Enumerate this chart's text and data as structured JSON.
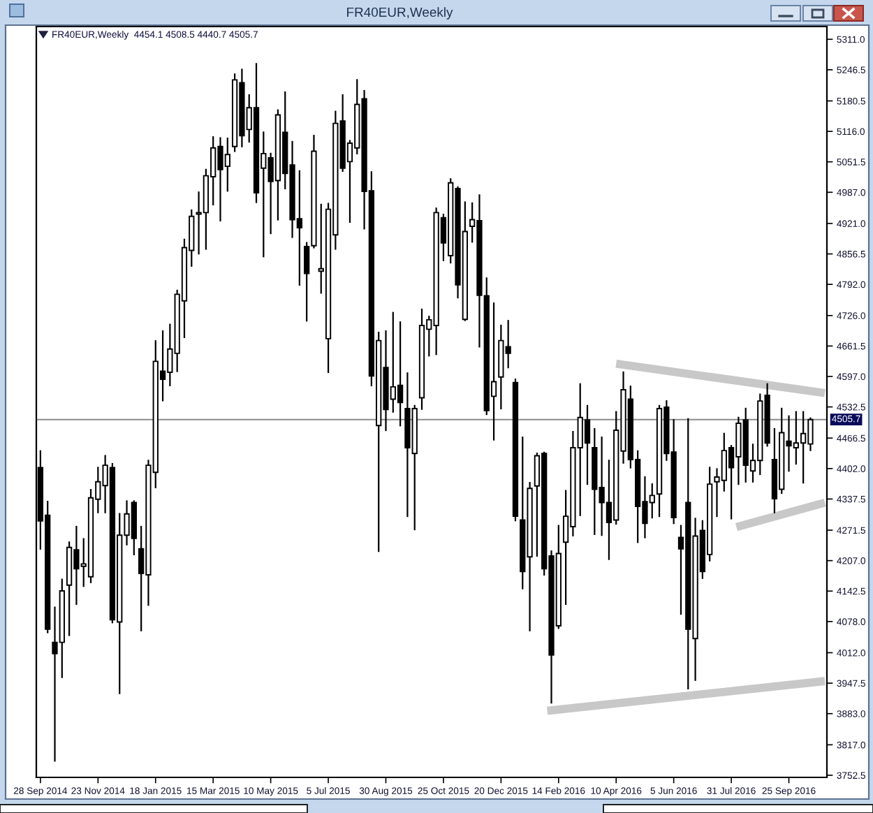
{
  "chart_data": {
    "type": "candlestick",
    "title": "FR40EUR,Weekly",
    "subtitle": "FR40EUR,Weekly  4454.1 4508.5 4440.7 4505.7",
    "x": [
      "2014-09-28",
      "2014-10-05",
      "2014-10-12",
      "2014-10-19",
      "2014-10-26",
      "2014-11-02",
      "2014-11-09",
      "2014-11-16",
      "2014-11-23",
      "2014-11-30",
      "2014-12-07",
      "2014-12-14",
      "2014-12-21",
      "2014-12-28",
      "2015-01-04",
      "2015-01-11",
      "2015-01-18",
      "2015-01-25",
      "2015-02-01",
      "2015-02-08",
      "2015-02-15",
      "2015-02-22",
      "2015-03-01",
      "2015-03-08",
      "2015-03-15",
      "2015-03-22",
      "2015-03-29",
      "2015-04-05",
      "2015-04-12",
      "2015-04-19",
      "2015-04-26",
      "2015-05-03",
      "2015-05-10",
      "2015-05-17",
      "2015-05-24",
      "2015-05-31",
      "2015-06-07",
      "2015-06-14",
      "2015-06-21",
      "2015-06-28",
      "2015-07-05",
      "2015-07-12",
      "2015-07-19",
      "2015-07-26",
      "2015-08-02",
      "2015-08-09",
      "2015-08-16",
      "2015-08-23",
      "2015-08-30",
      "2015-09-06",
      "2015-09-13",
      "2015-09-20",
      "2015-09-27",
      "2015-10-04",
      "2015-10-11",
      "2015-10-18",
      "2015-10-25",
      "2015-11-01",
      "2015-11-08",
      "2015-11-15",
      "2015-11-22",
      "2015-11-29",
      "2015-12-06",
      "2015-12-13",
      "2015-12-20",
      "2015-12-27",
      "2016-01-03",
      "2016-01-10",
      "2016-01-17",
      "2016-01-24",
      "2016-01-31",
      "2016-02-07",
      "2016-02-14",
      "2016-02-21",
      "2016-02-28",
      "2016-03-06",
      "2016-03-13",
      "2016-03-20",
      "2016-03-27",
      "2016-04-03",
      "2016-04-10",
      "2016-04-17",
      "2016-04-24",
      "2016-05-01",
      "2016-05-08",
      "2016-05-15",
      "2016-05-22",
      "2016-05-29",
      "2016-06-05",
      "2016-06-12",
      "2016-06-19",
      "2016-06-26",
      "2016-07-03",
      "2016-07-10",
      "2016-07-17",
      "2016-07-24",
      "2016-07-31",
      "2016-08-07",
      "2016-08-14",
      "2016-08-21",
      "2016-08-28",
      "2016-09-04",
      "2016-09-11",
      "2016-09-18",
      "2016-09-25",
      "2016-10-02",
      "2016-10-09",
      "2016-10-16"
    ],
    "ohlc": [
      [
        4404,
        4439,
        4232,
        4291
      ],
      [
        4303,
        4332,
        4055,
        4062
      ],
      [
        4034,
        4108,
        3783,
        4010
      ],
      [
        4034,
        4167,
        3960,
        4143
      ],
      [
        4155,
        4246,
        4049,
        4235
      ],
      [
        4230,
        4279,
        4115,
        4190
      ],
      [
        4195,
        4253,
        4153,
        4200
      ],
      [
        4173,
        4357,
        4161,
        4340
      ],
      [
        4337,
        4404,
        4309,
        4374
      ],
      [
        4366,
        4429,
        4309,
        4409
      ],
      [
        4404,
        4412,
        4076,
        4082
      ],
      [
        4077,
        4306,
        3926,
        4261
      ],
      [
        4261,
        4333,
        4241,
        4306
      ],
      [
        4330,
        4333,
        4220,
        4254
      ],
      [
        4232,
        4279,
        4059,
        4180
      ],
      [
        4177,
        4419,
        4113,
        4409
      ],
      [
        4394,
        4672,
        4362,
        4629
      ],
      [
        4608,
        4693,
        4546,
        4591
      ],
      [
        4606,
        4707,
        4578,
        4655
      ],
      [
        4646,
        4779,
        4608,
        4771
      ],
      [
        4757,
        4887,
        4680,
        4870
      ],
      [
        4864,
        4949,
        4831,
        4936
      ],
      [
        4941,
        4987,
        4857,
        4944
      ],
      [
        4944,
        5035,
        4867,
        5022
      ],
      [
        5020,
        5104,
        4961,
        5081
      ],
      [
        5084,
        5102,
        4927,
        5035
      ],
      [
        5042,
        5101,
        4990,
        5067
      ],
      [
        5084,
        5237,
        5074,
        5225
      ],
      [
        5219,
        5247,
        5084,
        5107
      ],
      [
        5120,
        5193,
        5094,
        5166
      ],
      [
        5166,
        5259,
        4966,
        4986
      ],
      [
        5038,
        5114,
        4851,
        5069
      ],
      [
        5060,
        5069,
        4900,
        5010
      ],
      [
        5012,
        5161,
        4929,
        5151
      ],
      [
        5114,
        5199,
        4995,
        5027
      ],
      [
        5045,
        5094,
        4892,
        4929
      ],
      [
        4931,
        5032,
        4791,
        4912
      ],
      [
        4872,
        4880,
        4715,
        4815
      ],
      [
        4874,
        5107,
        4870,
        5074
      ],
      [
        4820,
        4961,
        4774,
        4825
      ],
      [
        4677,
        4963,
        4606,
        4951
      ],
      [
        4897,
        5158,
        4867,
        5133
      ],
      [
        5138,
        5193,
        5032,
        5038
      ],
      [
        5052,
        5096,
        4924,
        5091
      ],
      [
        5081,
        5225,
        5069,
        5173
      ],
      [
        5185,
        5202,
        4910,
        4989
      ],
      [
        4990,
        5030,
        4578,
        4598
      ],
      [
        4493,
        4690,
        4227,
        4673
      ],
      [
        4616,
        4693,
        4483,
        4527
      ],
      [
        4549,
        4732,
        4522,
        4575
      ],
      [
        4578,
        4712,
        4493,
        4542
      ],
      [
        4529,
        4604,
        4301,
        4446
      ],
      [
        4434,
        4535,
        4273,
        4529
      ],
      [
        4552,
        4739,
        4528,
        4705
      ],
      [
        4697,
        4724,
        4641,
        4717
      ],
      [
        4705,
        4953,
        4644,
        4944
      ],
      [
        4933,
        4940,
        4843,
        4880
      ],
      [
        4853,
        5015,
        4838,
        5007
      ],
      [
        4995,
        4998,
        4764,
        4791
      ],
      [
        4718,
        4966,
        4716,
        4904
      ],
      [
        4915,
        4964,
        4882,
        4929
      ],
      [
        4927,
        4981,
        4660,
        4769
      ],
      [
        4768,
        4805,
        4517,
        4525
      ],
      [
        4555,
        4752,
        4463,
        4586
      ],
      [
        4596,
        4705,
        4529,
        4673
      ],
      [
        4660,
        4715,
        4616,
        4646
      ],
      [
        4584,
        4591,
        4292,
        4301
      ],
      [
        4293,
        4468,
        4148,
        4184
      ],
      [
        4215,
        4372,
        4059,
        4360
      ],
      [
        4365,
        4434,
        4217,
        4429
      ],
      [
        4434,
        4436,
        4177,
        4190
      ],
      [
        4217,
        4227,
        3906,
        4007
      ],
      [
        4069,
        4281,
        4064,
        4222
      ],
      [
        4246,
        4355,
        4115,
        4301
      ],
      [
        4279,
        4480,
        4260,
        4446
      ],
      [
        4446,
        4581,
        4303,
        4510
      ],
      [
        4505,
        4535,
        4369,
        4456
      ],
      [
        4446,
        4486,
        4263,
        4358
      ],
      [
        4362,
        4468,
        4261,
        4330
      ],
      [
        4330,
        4419,
        4210,
        4288
      ],
      [
        4293,
        4522,
        4285,
        4483
      ],
      [
        4439,
        4606,
        4414,
        4569
      ],
      [
        4549,
        4576,
        4404,
        4421
      ],
      [
        4421,
        4439,
        4246,
        4322
      ],
      [
        4332,
        4384,
        4256,
        4286
      ],
      [
        4330,
        4369,
        4298,
        4345
      ],
      [
        4348,
        4535,
        4301,
        4529
      ],
      [
        4532,
        4545,
        4420,
        4434
      ],
      [
        4437,
        4505,
        4286,
        4298
      ],
      [
        4256,
        4281,
        4094,
        4232
      ],
      [
        4330,
        4507,
        3936,
        4062
      ],
      [
        4042,
        4296,
        3954,
        4259
      ],
      [
        4271,
        4291,
        4170,
        4184
      ],
      [
        4220,
        4404,
        4207,
        4369
      ],
      [
        4374,
        4401,
        4301,
        4384
      ],
      [
        4377,
        4476,
        4355,
        4440
      ],
      [
        4446,
        4450,
        4296,
        4404
      ],
      [
        4427,
        4510,
        4369,
        4498
      ],
      [
        4505,
        4529,
        4374,
        4409
      ],
      [
        4397,
        4453,
        4374,
        4419
      ],
      [
        4419,
        4559,
        4390,
        4545
      ],
      [
        4557,
        4581,
        4450,
        4456
      ],
      [
        4421,
        4486,
        4309,
        4338
      ],
      [
        4358,
        4529,
        4350,
        4478
      ],
      [
        4460,
        4513,
        4397,
        4450
      ],
      [
        4446,
        4522,
        4412,
        4456
      ],
      [
        4456,
        4522,
        4372,
        4476
      ],
      [
        4454.1,
        4508.5,
        4440.7,
        4505.7
      ]
    ],
    "series": [
      {
        "type": "line",
        "x": [
          "2016-04-10",
          "2016-10-30"
        ],
        "values": [
          4624,
          4562
        ],
        "color": "#c8c8c8"
      },
      {
        "type": "line",
        "x": [
          "2016-08-05",
          "2016-10-30"
        ],
        "values": [
          4278,
          4330
        ],
        "color": "#c8c8c8"
      },
      {
        "type": "line",
        "x": [
          "2016-02-03",
          "2016-10-30"
        ],
        "values": [
          3889,
          3952
        ],
        "color": "#c8c8c8"
      }
    ],
    "ref_lines": [
      {
        "axis": "y",
        "value": 4505.7,
        "label": "4505.7",
        "color": "#8c8c8c"
      }
    ],
    "xlim": [
      "2014-09-24",
      "2016-11-01"
    ],
    "ylim": [
      3748,
      5338
    ],
    "xticks": [
      {
        "value": "2014-09-28",
        "label": "28 Sep 2014"
      },
      {
        "value": "2014-11-23",
        "label": "23 Nov 2014"
      },
      {
        "value": "2015-01-18",
        "label": "18 Jan 2015"
      },
      {
        "value": "2015-03-15",
        "label": "15 Mar 2015"
      },
      {
        "value": "2015-05-10",
        "label": "10 May 2015"
      },
      {
        "value": "2015-07-05",
        "label": "5 Jul 2015"
      },
      {
        "value": "2015-08-30",
        "label": "30 Aug 2015"
      },
      {
        "value": "2015-10-25",
        "label": "25 Oct 2015"
      },
      {
        "value": "2015-12-20",
        "label": "20 Dec 2015"
      },
      {
        "value": "2016-02-14",
        "label": "14 Feb 2016"
      },
      {
        "value": "2016-04-10",
        "label": "10 Apr 2016"
      },
      {
        "value": "2016-06-05",
        "label": "5 Jun 2016"
      },
      {
        "value": "2016-07-31",
        "label": "31 Jul 2016"
      },
      {
        "value": "2016-09-25",
        "label": "25 Sep 2016"
      }
    ],
    "yticks": [
      {
        "value": 5311.0,
        "label": "5311.0"
      },
      {
        "value": 5246.5,
        "label": "5246.5"
      },
      {
        "value": 5180.5,
        "label": "5180.5"
      },
      {
        "value": 5116.0,
        "label": "5116.0"
      },
      {
        "value": 5051.5,
        "label": "5051.5"
      },
      {
        "value": 4987.0,
        "label": "4987.0"
      },
      {
        "value": 4921.0,
        "label": "4921.0"
      },
      {
        "value": 4856.5,
        "label": "4856.5"
      },
      {
        "value": 4792.0,
        "label": "4792.0"
      },
      {
        "value": 4726.0,
        "label": "4726.0"
      },
      {
        "value": 4661.5,
        "label": "4661.5"
      },
      {
        "value": 4597.0,
        "label": "4597.0"
      },
      {
        "value": 4532.5,
        "label": "4532.5"
      },
      {
        "value": 4466.5,
        "label": "4466.5"
      },
      {
        "value": 4402.0,
        "label": "4402.0"
      },
      {
        "value": 4337.5,
        "label": "4337.5"
      },
      {
        "value": 4271.5,
        "label": "4271.5"
      },
      {
        "value": 4207.0,
        "label": "4207.0"
      },
      {
        "value": 4142.5,
        "label": "4142.5"
      },
      {
        "value": 4078.0,
        "label": "4078.0"
      },
      {
        "value": 4012.0,
        "label": "4012.0"
      },
      {
        "value": 3947.5,
        "label": "3947.5"
      },
      {
        "value": 3883.0,
        "label": "3883.0"
      },
      {
        "value": 3817.0,
        "label": "3817.0"
      },
      {
        "value": 3752.5,
        "label": "3752.5"
      }
    ]
  }
}
